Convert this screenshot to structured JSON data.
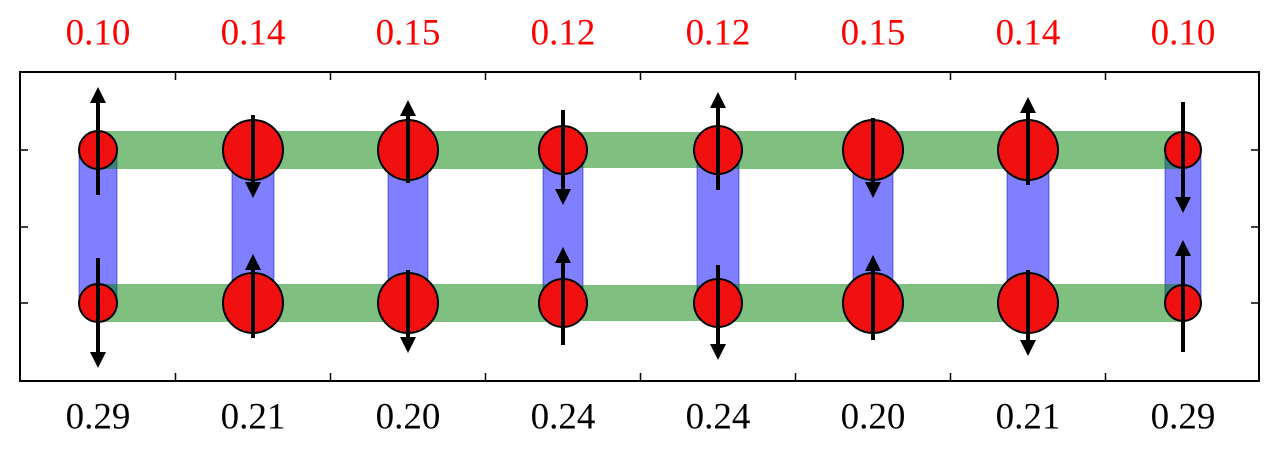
{
  "top_labels": [
    "0.10",
    "0.14",
    "0.15",
    "0.12",
    "0.12",
    "0.15",
    "0.14",
    "0.10"
  ],
  "bottom_labels": [
    "0.29",
    "0.21",
    "0.20",
    "0.24",
    "0.24",
    "0.20",
    "0.21",
    "0.29"
  ]
}
